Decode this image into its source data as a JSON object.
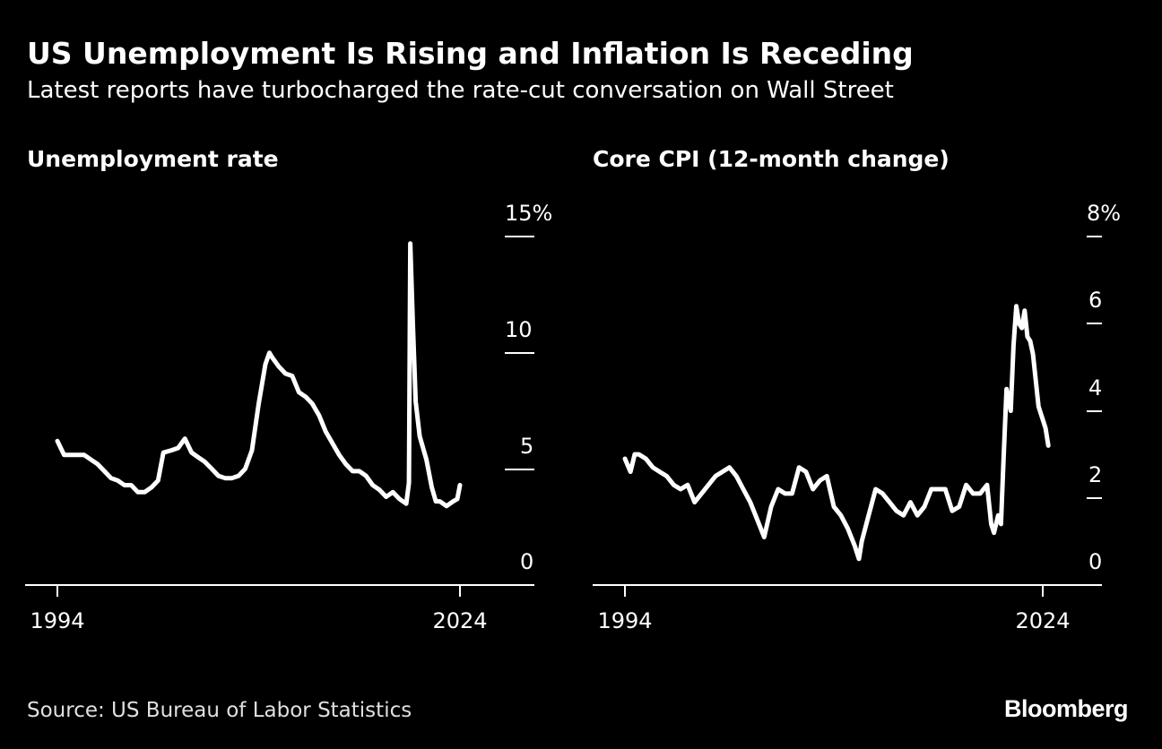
{
  "header": {
    "title": "US Unemployment Is Rising and Inflation Is Receding",
    "subtitle": "Latest reports have turbocharged the rate-cut conversation on Wall Street"
  },
  "footer": {
    "source": "Source: US Bureau of Labor Statistics",
    "brand": "Bloomberg"
  },
  "colors": {
    "background": "#000000",
    "line": "#ffffff",
    "axis": "#ffffff",
    "text": "#ffffff"
  },
  "chart_data": [
    {
      "type": "line",
      "title": "Unemployment rate",
      "xlabel": "",
      "ylabel": "",
      "x_tick_labels": [
        "1994",
        "2024"
      ],
      "y_tick_labels": [
        "15%",
        "10",
        "5",
        "0"
      ],
      "y_ticks": [
        15,
        10,
        5,
        0
      ],
      "ylim": [
        0,
        15
      ],
      "xlim": [
        1994,
        2024
      ],
      "grid": false,
      "series": [
        {
          "points": [
            [
              1994.0,
              6.2
            ],
            [
              1994.5,
              5.6
            ],
            [
              1995.0,
              5.6
            ],
            [
              1995.5,
              5.6
            ],
            [
              1996.0,
              5.6
            ],
            [
              1996.5,
              5.4
            ],
            [
              1997.0,
              5.2
            ],
            [
              1997.5,
              4.9
            ],
            [
              1998.0,
              4.6
            ],
            [
              1998.5,
              4.5
            ],
            [
              1999.0,
              4.3
            ],
            [
              1999.5,
              4.3
            ],
            [
              2000.0,
              4.0
            ],
            [
              2000.5,
              4.0
            ],
            [
              2001.0,
              4.2
            ],
            [
              2001.5,
              4.5
            ],
            [
              2001.9,
              5.7
            ],
            [
              2002.5,
              5.8
            ],
            [
              2003.0,
              5.9
            ],
            [
              2003.5,
              6.3
            ],
            [
              2004.0,
              5.7
            ],
            [
              2004.5,
              5.5
            ],
            [
              2005.0,
              5.3
            ],
            [
              2005.5,
              5.0
            ],
            [
              2006.0,
              4.7
            ],
            [
              2006.5,
              4.6
            ],
            [
              2007.0,
              4.6
            ],
            [
              2007.5,
              4.7
            ],
            [
              2008.0,
              5.0
            ],
            [
              2008.5,
              5.8
            ],
            [
              2009.0,
              7.8
            ],
            [
              2009.5,
              9.5
            ],
            [
              2009.8,
              10.0
            ],
            [
              2010.0,
              9.8
            ],
            [
              2010.5,
              9.4
            ],
            [
              2011.0,
              9.1
            ],
            [
              2011.5,
              9.0
            ],
            [
              2012.0,
              8.3
            ],
            [
              2012.5,
              8.1
            ],
            [
              2013.0,
              7.8
            ],
            [
              2013.5,
              7.3
            ],
            [
              2014.0,
              6.6
            ],
            [
              2014.5,
              6.1
            ],
            [
              2015.0,
              5.6
            ],
            [
              2015.5,
              5.2
            ],
            [
              2016.0,
              4.9
            ],
            [
              2016.5,
              4.9
            ],
            [
              2017.0,
              4.7
            ],
            [
              2017.5,
              4.3
            ],
            [
              2018.0,
              4.1
            ],
            [
              2018.5,
              3.8
            ],
            [
              2019.0,
              4.0
            ],
            [
              2019.5,
              3.7
            ],
            [
              2020.0,
              3.5
            ],
            [
              2020.2,
              4.4
            ],
            [
              2020.3,
              14.7
            ],
            [
              2020.5,
              11.1
            ],
            [
              2020.7,
              7.9
            ],
            [
              2021.0,
              6.4
            ],
            [
              2021.5,
              5.4
            ],
            [
              2021.9,
              4.2
            ],
            [
              2022.2,
              3.6
            ],
            [
              2022.5,
              3.6
            ],
            [
              2023.0,
              3.4
            ],
            [
              2023.5,
              3.6
            ],
            [
              2023.8,
              3.7
            ],
            [
              2024.0,
              4.3
            ]
          ]
        }
      ]
    },
    {
      "type": "line",
      "title": "Core CPI (12-month change)",
      "xlabel": "",
      "ylabel": "",
      "x_tick_labels": [
        "1994",
        "2024"
      ],
      "y_tick_labels": [
        "8%",
        "6",
        "4",
        "2",
        "0"
      ],
      "y_ticks": [
        8,
        6,
        4,
        2,
        0
      ],
      "ylim": [
        0,
        8
      ],
      "xlim": [
        1994,
        2024
      ],
      "grid": false,
      "series": [
        {
          "points": [
            [
              1994.0,
              2.9
            ],
            [
              1994.4,
              2.6
            ],
            [
              1994.7,
              3.0
            ],
            [
              1995.0,
              3.0
            ],
            [
              1995.5,
              2.9
            ],
            [
              1996.0,
              2.7
            ],
            [
              1996.5,
              2.6
            ],
            [
              1997.0,
              2.5
            ],
            [
              1997.5,
              2.3
            ],
            [
              1998.0,
              2.2
            ],
            [
              1998.5,
              2.3
            ],
            [
              1999.0,
              1.9
            ],
            [
              1999.5,
              2.1
            ],
            [
              2000.0,
              2.3
            ],
            [
              2000.5,
              2.5
            ],
            [
              2001.0,
              2.6
            ],
            [
              2001.5,
              2.7
            ],
            [
              2002.0,
              2.5
            ],
            [
              2002.5,
              2.2
            ],
            [
              2003.0,
              1.9
            ],
            [
              2003.5,
              1.5
            ],
            [
              2004.0,
              1.1
            ],
            [
              2004.5,
              1.8
            ],
            [
              2005.0,
              2.2
            ],
            [
              2005.5,
              2.1
            ],
            [
              2006.0,
              2.1
            ],
            [
              2006.5,
              2.7
            ],
            [
              2007.0,
              2.6
            ],
            [
              2007.5,
              2.2
            ],
            [
              2008.0,
              2.4
            ],
            [
              2008.5,
              2.5
            ],
            [
              2009.0,
              1.8
            ],
            [
              2009.5,
              1.6
            ],
            [
              2010.0,
              1.3
            ],
            [
              2010.5,
              0.9
            ],
            [
              2010.8,
              0.6
            ],
            [
              2011.0,
              1.0
            ],
            [
              2011.5,
              1.6
            ],
            [
              2012.0,
              2.2
            ],
            [
              2012.5,
              2.1
            ],
            [
              2013.0,
              1.9
            ],
            [
              2013.5,
              1.7
            ],
            [
              2014.0,
              1.6
            ],
            [
              2014.5,
              1.9
            ],
            [
              2015.0,
              1.6
            ],
            [
              2015.5,
              1.8
            ],
            [
              2016.0,
              2.2
            ],
            [
              2016.5,
              2.2
            ],
            [
              2017.0,
              2.2
            ],
            [
              2017.5,
              1.7
            ],
            [
              2018.0,
              1.8
            ],
            [
              2018.5,
              2.3
            ],
            [
              2019.0,
              2.1
            ],
            [
              2019.5,
              2.1
            ],
            [
              2020.0,
              2.3
            ],
            [
              2020.3,
              1.4
            ],
            [
              2020.5,
              1.2
            ],
            [
              2020.8,
              1.6
            ],
            [
              2021.0,
              1.4
            ],
            [
              2021.2,
              3.0
            ],
            [
              2021.4,
              4.5
            ],
            [
              2021.7,
              4.0
            ],
            [
              2021.9,
              5.5
            ],
            [
              2022.1,
              6.4
            ],
            [
              2022.3,
              6.0
            ],
            [
              2022.5,
              5.9
            ],
            [
              2022.7,
              6.3
            ],
            [
              2022.9,
              5.7
            ],
            [
              2023.1,
              5.6
            ],
            [
              2023.3,
              5.3
            ],
            [
              2023.5,
              4.7
            ],
            [
              2023.7,
              4.1
            ],
            [
              2023.9,
              3.9
            ],
            [
              2024.0,
              3.8
            ],
            [
              2024.2,
              3.6
            ],
            [
              2024.4,
              3.2
            ]
          ]
        }
      ]
    }
  ]
}
